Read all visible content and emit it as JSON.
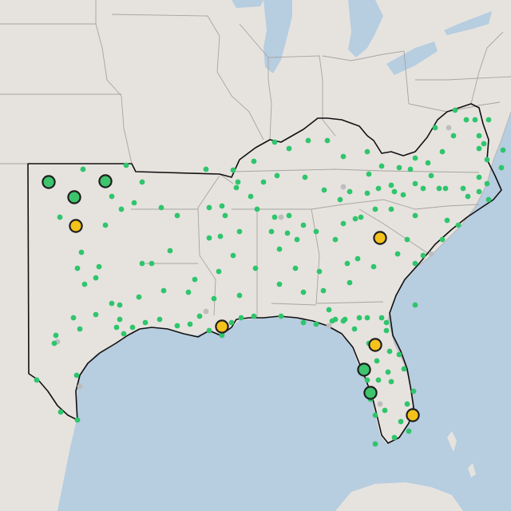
{
  "map": {
    "colors": {
      "land": "#e6e3df",
      "water": "#b7cde0",
      "small_point": "#2fc56c",
      "small_point_gray": "#bdbdbd",
      "large_green": "#3ec46d",
      "large_yellow": "#f4c21b",
      "marker_outline": "#1f1f1f",
      "region_outline": "#111111"
    },
    "large_markers": [
      {
        "name": "marker-green-1",
        "category": "green",
        "lat": 36.8,
        "lon": -102.6
      },
      {
        "name": "marker-green-2",
        "category": "green",
        "lat": 36.3,
        "lon": -101.5
      },
      {
        "name": "marker-green-3",
        "category": "green",
        "lat": 36.8,
        "lon": -100.2
      },
      {
        "name": "marker-yellow-1",
        "category": "yellow",
        "lat": 35.3,
        "lon": -101.4
      },
      {
        "name": "marker-yellow-2",
        "category": "yellow",
        "lat": 33.5,
        "lon": -82.0
      },
      {
        "name": "marker-yellow-3",
        "category": "yellow",
        "lat": 29.9,
        "lon": -90.1
      },
      {
        "name": "marker-yellow-4",
        "category": "yellow",
        "lat": 29.6,
        "lon": -82.4
      },
      {
        "name": "marker-green-4",
        "category": "green",
        "lat": 28.1,
        "lon": -82.7
      },
      {
        "name": "marker-green-5",
        "category": "green",
        "lat": 27.2,
        "lon": -82.5
      },
      {
        "name": "marker-yellow-5",
        "category": "yellow",
        "lat": 26.4,
        "lon": -80.1
      }
    ]
  }
}
